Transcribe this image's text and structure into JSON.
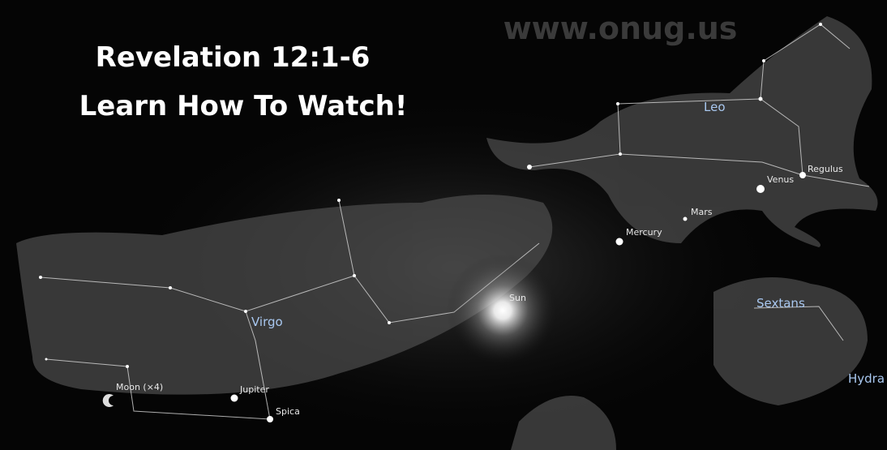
{
  "title": {
    "lines": [
      "Revelation 12:1-6",
      "Learn How To Watch!"
    ]
  },
  "watermark": "www.onug.us",
  "labels": [
    "Leo",
    "Regulus",
    "Venus",
    "Mars",
    "Mercury",
    "Sun",
    "Virgo",
    "Sextans",
    "Hydra",
    "Moon (×4)",
    "Jupiter",
    "Spica"
  ]
}
